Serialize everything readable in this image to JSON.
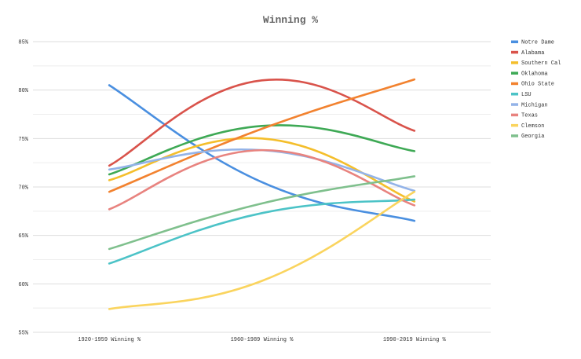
{
  "chart_data": {
    "type": "line",
    "title": "Winning %",
    "categories": [
      "1920-1959 Winning %",
      "1960-1989 Winning %",
      "1990-2019 Winning %"
    ],
    "ylim": [
      55,
      85
    ],
    "yticks": [
      55,
      60,
      65,
      70,
      75,
      80,
      85
    ],
    "ytick_suffix": "%",
    "grid": true,
    "legend_position": "right",
    "smooth": true,
    "series": [
      {
        "name": "Notre Dame",
        "color": "#4a8fe0",
        "values": [
          80.5,
          70.5,
          66.5
        ]
      },
      {
        "name": "Alabama",
        "color": "#d9534b",
        "values": [
          72.2,
          81.0,
          75.8
        ]
      },
      {
        "name": "Southern Cal",
        "color": "#f4be2b",
        "values": [
          70.7,
          75.0,
          68.5
        ]
      },
      {
        "name": "Oklahoma",
        "color": "#3ea955",
        "values": [
          71.3,
          76.3,
          73.7
        ]
      },
      {
        "name": "Ohio State",
        "color": "#f2822f",
        "values": [
          69.5,
          76.0,
          81.1
        ]
      },
      {
        "name": "LSU",
        "color": "#4cc3c7",
        "values": [
          62.1,
          67.3,
          68.7
        ]
      },
      {
        "name": "Michigan",
        "color": "#93b3e8",
        "values": [
          71.8,
          73.8,
          69.6
        ]
      },
      {
        "name": "Texas",
        "color": "#e8837f",
        "values": [
          67.7,
          73.8,
          68.1
        ]
      },
      {
        "name": "Clemson",
        "color": "#fad45e",
        "values": [
          57.4,
          60.3,
          69.5
        ]
      },
      {
        "name": "Georgia",
        "color": "#7fc08d",
        "values": [
          63.6,
          68.3,
          71.1
        ]
      }
    ]
  }
}
